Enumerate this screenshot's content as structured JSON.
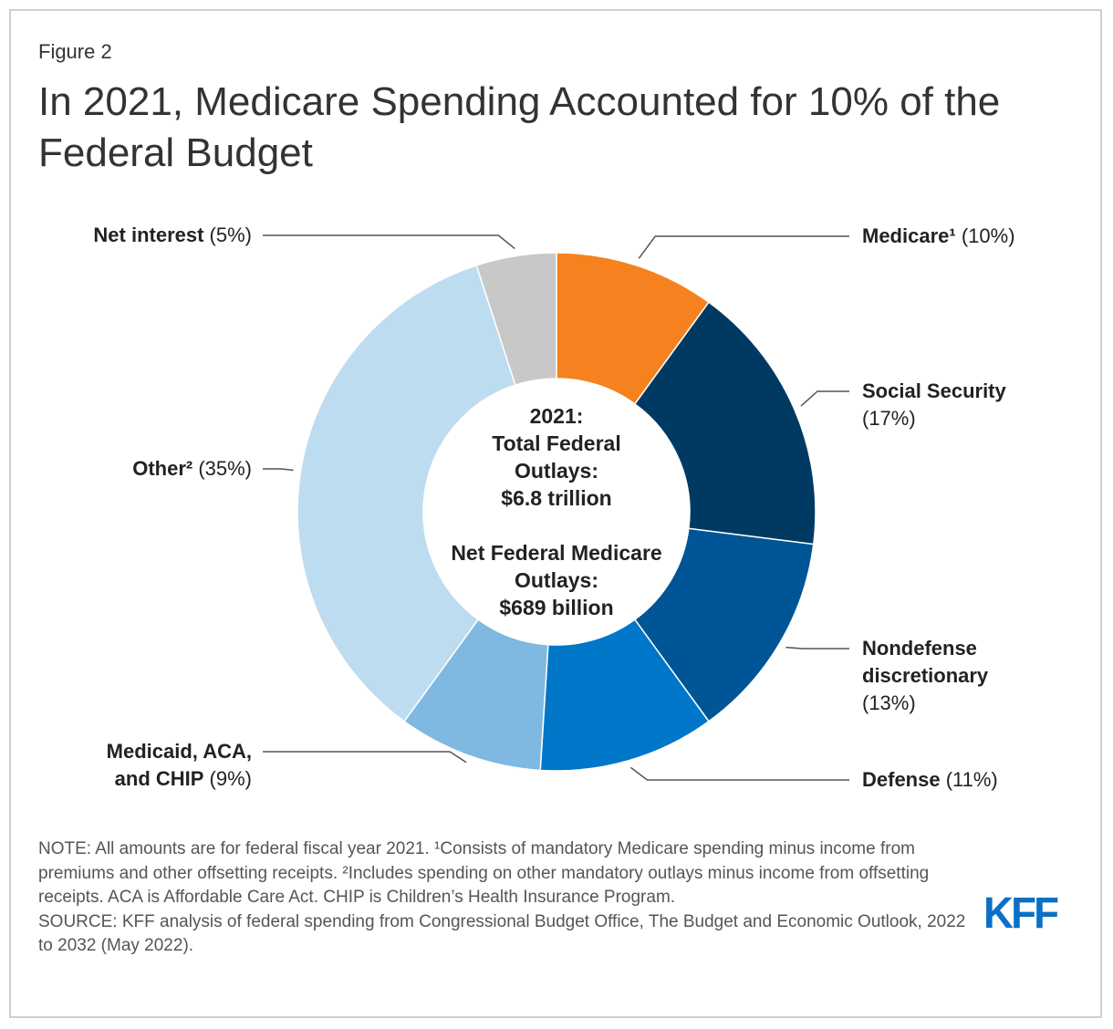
{
  "figure_label": "Figure 2",
  "title": "In 2021, Medicare Spending Accounted for 10% of the Federal Budget",
  "center": {
    "line1": "2021:",
    "line2": "Total Federal",
    "line3": "Outlays:",
    "line4": "$6.8 trillion",
    "line5": "Net Federal Medicare",
    "line6": "Outlays:",
    "line7": "$689 billion"
  },
  "chart_data": {
    "type": "pie",
    "subtype": "donut",
    "title": "In 2021, Medicare Spending Accounted for 10% of the Federal Budget",
    "unit": "percent",
    "slices": [
      {
        "name": "Medicare",
        "label_bold": "Medicare¹",
        "label_pct": "(10%)",
        "value": 10,
        "color": "#f5821f"
      },
      {
        "name": "Social Security",
        "label_bold": "Social Security",
        "label_pct": "(17%)",
        "value": 17,
        "color": "#003a63"
      },
      {
        "name": "Nondefense discretionary",
        "label_bold": "Nondefense discretionary",
        "label_pct": "(13%)",
        "value": 13,
        "color": "#005596"
      },
      {
        "name": "Defense",
        "label_bold": "Defense",
        "label_pct": "(11%)",
        "value": 11,
        "color": "#0077c8"
      },
      {
        "name": "Medicaid, ACA, and CHIP",
        "label_bold": "Medicaid, ACA, and CHIP",
        "label_pct": "(9%)",
        "value": 9,
        "color": "#7fb8e0"
      },
      {
        "name": "Other",
        "label_bold": "Other²",
        "label_pct": "(35%)",
        "value": 35,
        "color": "#bedcef"
      },
      {
        "name": "Net interest",
        "label_bold": "Net interest",
        "label_pct": "(5%)",
        "value": 5,
        "color": "#c8c8c8"
      }
    ]
  },
  "notes": {
    "note": "NOTE: All amounts are for federal fiscal year 2021. ¹Consists of mandatory Medicare spending minus income from premiums and other offsetting receipts. ²Includes spending on other mandatory outlays minus income from offsetting receipts. ACA is Affordable Care Act. CHIP is Children’s Health Insurance Program.",
    "source": "SOURCE: KFF analysis of federal spending from Congressional Budget Office, The Budget and Economic Outlook, 2022 to 2032 (May 2022)."
  },
  "logo_text": "KFF"
}
